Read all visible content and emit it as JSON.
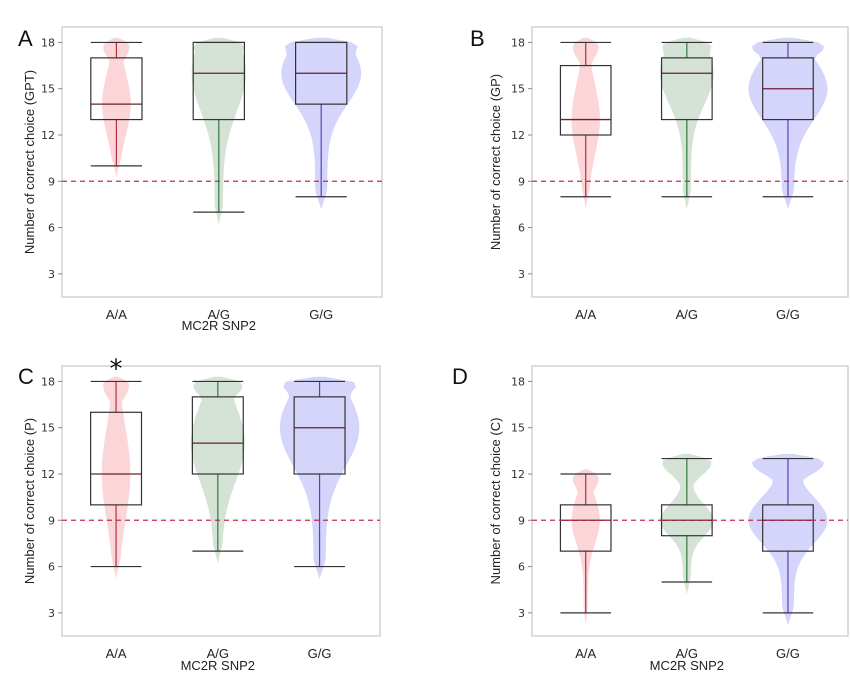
{
  "chart_data": [
    {
      "type": "box",
      "panel_label": "A",
      "ylabel": "Number of correct choice (GPT)",
      "xlabel": "MC2R SNP2",
      "categories": [
        "A/A",
        "A/G",
        "G/G"
      ],
      "ylim": [
        1.5,
        19
      ],
      "yticks": [
        3,
        6,
        9,
        12,
        15,
        18
      ],
      "reference_line": 9,
      "boxes": [
        {
          "category": "A/A",
          "min": 10,
          "q1": 13,
          "median": 14,
          "q3": 17,
          "max": 18
        },
        {
          "category": "A/G",
          "min": 7,
          "q1": 13,
          "median": 16,
          "q3": 18,
          "max": 18
        },
        {
          "category": "G/G",
          "min": 8,
          "q1": 14,
          "median": 16,
          "q3": 18,
          "max": 18
        }
      ],
      "annotation": ""
    },
    {
      "type": "box",
      "panel_label": "B",
      "ylabel": "Number of correct choice (GP)",
      "xlabel": "",
      "categories": [
        "A/A",
        "A/G",
        "G/G"
      ],
      "ylim": [
        1.5,
        19
      ],
      "yticks": [
        3,
        6,
        9,
        12,
        15,
        18
      ],
      "reference_line": 9,
      "boxes": [
        {
          "category": "A/A",
          "min": 8,
          "q1": 12,
          "median": 13,
          "q3": 16.5,
          "max": 18
        },
        {
          "category": "A/G",
          "min": 8,
          "q1": 13,
          "median": 16,
          "q3": 17,
          "max": 18
        },
        {
          "category": "G/G",
          "min": 8,
          "q1": 13,
          "median": 15,
          "q3": 17,
          "max": 18
        }
      ],
      "annotation": ""
    },
    {
      "type": "box",
      "panel_label": "C",
      "ylabel": "Number of correct choice (P)",
      "xlabel": "MC2R SNP2",
      "categories": [
        "A/A",
        "A/G",
        "G/G"
      ],
      "ylim": [
        1.5,
        19
      ],
      "yticks": [
        3,
        6,
        9,
        12,
        15,
        18
      ],
      "reference_line": 9,
      "boxes": [
        {
          "category": "A/A",
          "min": 6,
          "q1": 10,
          "median": 12,
          "q3": 16,
          "max": 18
        },
        {
          "category": "A/G",
          "min": 7,
          "q1": 12,
          "median": 14,
          "q3": 17,
          "max": 18
        },
        {
          "category": "G/G",
          "min": 6,
          "q1": 12,
          "median": 15,
          "q3": 17,
          "max": 18
        }
      ],
      "annotation": "*"
    },
    {
      "type": "box",
      "panel_label": "D",
      "ylabel": "Number of correct choice (C)",
      "xlabel": "MC2R SNP2",
      "categories": [
        "A/A",
        "A/G",
        "G/G"
      ],
      "ylim": [
        1.5,
        19
      ],
      "yticks": [
        3,
        6,
        9,
        12,
        15,
        18
      ],
      "reference_line": 9,
      "boxes": [
        {
          "category": "A/A",
          "min": 3,
          "q1": 7,
          "median": 9,
          "q3": 10,
          "max": 12
        },
        {
          "category": "A/G",
          "min": 5,
          "q1": 8,
          "median": 9,
          "q3": 10,
          "max": 13
        },
        {
          "category": "G/G",
          "min": 3,
          "q1": 7,
          "median": 9,
          "q3": 10,
          "max": 13
        }
      ],
      "annotation": ""
    }
  ],
  "colors": {
    "aa_violin": "#f7b3b8",
    "ag_violin": "#a9c8ad",
    "gg_violin": "#b3b0f5",
    "aa_line": "#b03040",
    "ag_line": "#2f7a3a",
    "gg_line": "#5a40c0",
    "box_median": "#6a2030",
    "reference_line": "#c0304a",
    "frame": "#c8c8c8"
  }
}
